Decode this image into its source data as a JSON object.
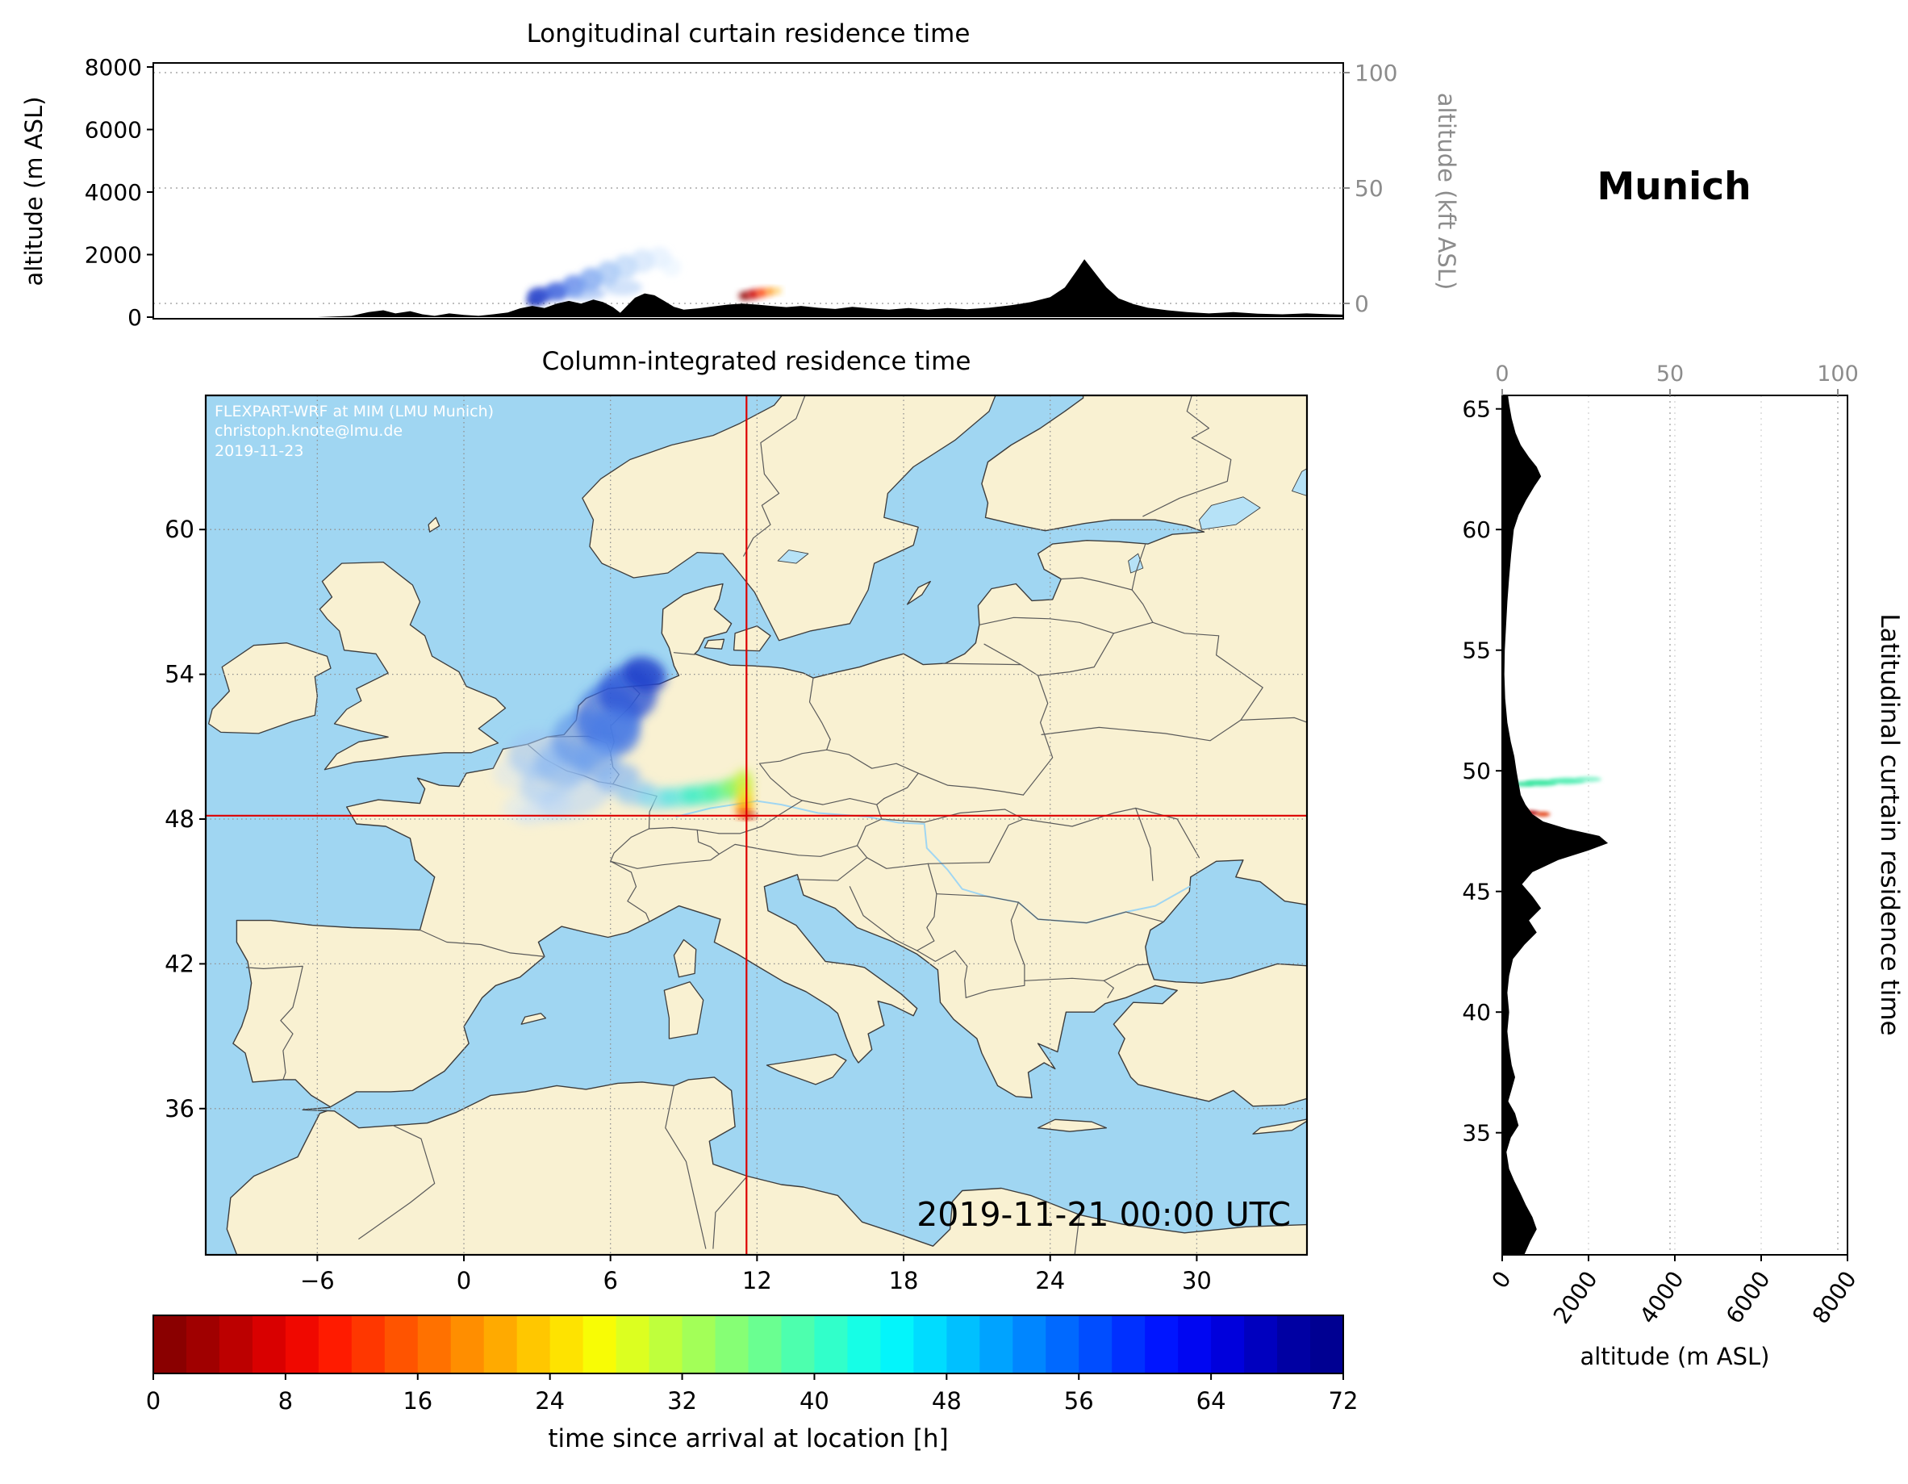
{
  "titles": {
    "longitudinal": "Longitudinal curtain residence time",
    "map": "Column-integrated residence time",
    "latitudinal": "Latitudinal curtain residence time",
    "location": "Munich"
  },
  "axis_labels": {
    "alt_m": "altitude (m ASL)",
    "alt_kft": "altitude (kft ASL)"
  },
  "map_panel": {
    "watermark_lines": [
      "FLEXPART-WRF at MIM (LMU Munich)",
      "christoph.knote@lmu.de",
      "2019-11-23"
    ],
    "timestamp": "2019-11-21 00:00 UTC"
  },
  "colors": {
    "sea": "#a0d6f2",
    "land": "#f9f1d2",
    "lake": "#b6e2f7",
    "coast": "#3c3c3c",
    "border": "#5a5a5a",
    "river": "#a0d6f2",
    "crosshair": "#dd0000",
    "axis_gray": "#8c8c8c",
    "terrain": "#000000"
  },
  "colorbar": {
    "label": "time since arrival at location [h]",
    "min": 0,
    "max": 72,
    "ticks": [
      0,
      8,
      16,
      24,
      32,
      40,
      48,
      56,
      64,
      72
    ],
    "colormap": "jet_r",
    "stops": [
      "#7f0000",
      "#9b0000",
      "#c10000",
      "#e70000",
      "#ff1600",
      "#ff3c00",
      "#ff6200",
      "#ff8900",
      "#ffaf00",
      "#ffd500",
      "#fdfb00",
      "#d7ff24",
      "#b1ff4a",
      "#8bff70",
      "#65ff96",
      "#3fffbc",
      "#19ffe2",
      "#00f4ff",
      "#00ceff",
      "#00a8ff",
      "#0081ff",
      "#005bff",
      "#0035ff",
      "#0010ff",
      "#0000ea",
      "#0000c4",
      "#00009e",
      "#00008b"
    ]
  },
  "chart_data": [
    {
      "id": "longitudinal_curtain",
      "type": "area",
      "title": "Longitudinal curtain residence time",
      "ylabel": "altitude (m ASL)",
      "y2label": "altitude (kft ASL)",
      "ylim": [
        0,
        8000
      ],
      "y2lim": [
        0,
        100
      ],
      "lon_range": [
        -12.7,
        36.0
      ],
      "yticks": [
        0,
        2000,
        4000,
        6000,
        8000
      ],
      "y2ticks": [
        0,
        50,
        100
      ],
      "terrain_lon_alt": [
        [
          -12.7,
          0
        ],
        [
          -6.0,
          0
        ],
        [
          -4.6,
          40
        ],
        [
          -3.9,
          160
        ],
        [
          -3.3,
          220
        ],
        [
          -2.8,
          120
        ],
        [
          -2.2,
          190
        ],
        [
          -1.7,
          90
        ],
        [
          -1.2,
          40
        ],
        [
          -0.6,
          120
        ],
        [
          0.0,
          70
        ],
        [
          0.6,
          40
        ],
        [
          1.2,
          90
        ],
        [
          1.8,
          150
        ],
        [
          2.3,
          280
        ],
        [
          2.8,
          360
        ],
        [
          3.3,
          290
        ],
        [
          3.8,
          430
        ],
        [
          4.3,
          520
        ],
        [
          4.8,
          430
        ],
        [
          5.3,
          560
        ],
        [
          5.7,
          480
        ],
        [
          6.1,
          320
        ],
        [
          6.4,
          140
        ],
        [
          6.7,
          380
        ],
        [
          7.0,
          620
        ],
        [
          7.4,
          760
        ],
        [
          7.8,
          700
        ],
        [
          8.2,
          520
        ],
        [
          8.6,
          330
        ],
        [
          9.0,
          240
        ],
        [
          9.6,
          280
        ],
        [
          10.2,
          340
        ],
        [
          10.8,
          400
        ],
        [
          11.4,
          430
        ],
        [
          12.0,
          400
        ],
        [
          12.6,
          360
        ],
        [
          13.2,
          320
        ],
        [
          13.8,
          360
        ],
        [
          14.5,
          300
        ],
        [
          15.2,
          260
        ],
        [
          15.9,
          330
        ],
        [
          16.6,
          280
        ],
        [
          17.4,
          240
        ],
        [
          18.2,
          290
        ],
        [
          19.0,
          240
        ],
        [
          19.8,
          290
        ],
        [
          20.6,
          250
        ],
        [
          21.5,
          300
        ],
        [
          22.4,
          380
        ],
        [
          23.2,
          480
        ],
        [
          24.0,
          640
        ],
        [
          24.6,
          950
        ],
        [
          25.1,
          1500
        ],
        [
          25.4,
          1850
        ],
        [
          25.8,
          1450
        ],
        [
          26.3,
          950
        ],
        [
          26.8,
          600
        ],
        [
          27.4,
          420
        ],
        [
          28.0,
          300
        ],
        [
          28.8,
          220
        ],
        [
          29.6,
          160
        ],
        [
          30.5,
          120
        ],
        [
          31.5,
          160
        ],
        [
          32.5,
          110
        ],
        [
          33.5,
          90
        ],
        [
          34.5,
          120
        ],
        [
          35.5,
          90
        ],
        [
          36.0,
          80
        ]
      ],
      "plume": {
        "format": [
          "lon",
          "alt_m",
          "rx_deg",
          "ry_m",
          "color",
          "opacity"
        ],
        "points": [
          [
            2.9,
            520,
            0.35,
            150,
            "#1e34b4",
            0.9
          ],
          [
            3.1,
            700,
            0.5,
            260,
            "#2a46cc",
            0.9
          ],
          [
            3.8,
            820,
            0.5,
            300,
            "#3c62dc",
            0.85
          ],
          [
            4.5,
            1000,
            0.5,
            350,
            "#5580e8",
            0.75
          ],
          [
            5.2,
            1200,
            0.5,
            380,
            "#6f9cee",
            0.7
          ],
          [
            5.9,
            1400,
            0.5,
            400,
            "#8ab4f2",
            0.6
          ],
          [
            6.6,
            1600,
            0.5,
            400,
            "#a4c8f6",
            0.55
          ],
          [
            7.3,
            1800,
            0.5,
            380,
            "#bcd8fa",
            0.5
          ],
          [
            8.0,
            1900,
            0.5,
            350,
            "#d0e4fc",
            0.45
          ],
          [
            8.5,
            1600,
            0.4,
            300,
            "#dceefe",
            0.4
          ],
          [
            5.0,
            750,
            0.8,
            220,
            "#7fa8f0",
            0.5
          ],
          [
            6.5,
            950,
            0.8,
            260,
            "#9cc0f4",
            0.45
          ],
          [
            11.5,
            680,
            0.24,
            130,
            "#8c0000",
            1
          ],
          [
            11.85,
            730,
            0.25,
            140,
            "#c80000",
            1
          ],
          [
            12.2,
            780,
            0.25,
            130,
            "#ff3c00",
            0.95
          ],
          [
            12.55,
            820,
            0.2,
            110,
            "#ff8c00",
            0.9
          ],
          [
            12.85,
            840,
            0.15,
            90,
            "#ffc030",
            0.85
          ]
        ]
      }
    },
    {
      "id": "column_integrated_map",
      "type": "map",
      "title": "Column-integrated residence time",
      "lon_range": [
        -10.6,
        34.5
      ],
      "lat_range": [
        29.9,
        65.6
      ],
      "xticks": [
        -6,
        0,
        6,
        12,
        18,
        24,
        30
      ],
      "yticks": [
        36,
        42,
        48,
        54,
        60
      ],
      "crosshair": {
        "lon": 11.57,
        "lat": 48.14
      },
      "plume": {
        "format": [
          "lon",
          "lat",
          "rx_deg",
          "ry_deg",
          "rot_deg",
          "color",
          "opacity"
        ],
        "points": [
          [
            2.6,
            48.7,
            1.1,
            0.6,
            -25,
            "#d4e6fa",
            0.45
          ],
          [
            2.1,
            49.9,
            0.9,
            0.7,
            0,
            "#cde2fa",
            0.4
          ],
          [
            3.3,
            48.4,
            1.2,
            0.5,
            -20,
            "#c8defa",
            0.5
          ],
          [
            4.6,
            48.9,
            1.6,
            0.8,
            -20,
            "#b4d4f8",
            0.55
          ],
          [
            3.6,
            49.7,
            1.4,
            0.9,
            -30,
            "#a6cbf6",
            0.55
          ],
          [
            3.0,
            50.7,
            1.2,
            1.0,
            0,
            "#9cc4f4",
            0.6
          ],
          [
            4.1,
            50.3,
            1.2,
            0.9,
            0,
            "#88b6f0",
            0.6
          ],
          [
            4.9,
            51.3,
            1.3,
            1.2,
            0,
            "#5f94ea",
            0.65
          ],
          [
            5.9,
            52.2,
            1.3,
            1.4,
            10,
            "#3f70e2",
            0.75
          ],
          [
            6.7,
            53.2,
            1.2,
            1.1,
            15,
            "#2c54d6",
            0.8
          ],
          [
            7.4,
            54.0,
            0.9,
            0.7,
            20,
            "#2040ca",
            0.85
          ],
          [
            6.2,
            51.6,
            1.0,
            1.0,
            0,
            "#4a7ce6",
            0.7
          ],
          [
            5.5,
            50.4,
            0.9,
            0.8,
            0,
            "#6ea2ee",
            0.65
          ],
          [
            6.3,
            49.7,
            0.9,
            0.6,
            -10,
            "#7fb2f2",
            0.65
          ],
          [
            7.0,
            49.1,
            0.8,
            0.5,
            -10,
            "#8cc6f2",
            0.7
          ],
          [
            7.9,
            48.85,
            0.8,
            0.45,
            0,
            "#7cd8f0",
            0.7
          ],
          [
            8.8,
            48.9,
            0.8,
            0.4,
            0,
            "#55e6dd",
            0.75
          ],
          [
            9.7,
            49.0,
            0.8,
            0.4,
            0,
            "#38eec2",
            0.8
          ],
          [
            10.5,
            49.15,
            0.7,
            0.35,
            0,
            "#52f29a",
            0.8
          ],
          [
            11.05,
            49.3,
            0.5,
            0.4,
            0,
            "#8ef468",
            0.85
          ],
          [
            11.45,
            49.55,
            0.35,
            0.5,
            0,
            "#c6f243",
            0.9
          ],
          [
            11.5,
            48.95,
            0.3,
            0.5,
            0,
            "#eee225",
            0.9
          ],
          [
            11.5,
            48.55,
            0.28,
            0.32,
            0,
            "#ffb400",
            0.95
          ],
          [
            11.42,
            48.3,
            0.25,
            0.18,
            0,
            "#ff5a00",
            0.95
          ],
          [
            11.57,
            48.17,
            0.22,
            0.13,
            0,
            "#dc1400",
            1
          ],
          [
            11.78,
            48.14,
            0.14,
            0.09,
            0,
            "#8f0000",
            1
          ]
        ]
      }
    },
    {
      "id": "latitudinal_curtain",
      "type": "area",
      "title": "Latitudinal curtain residence time",
      "xlabel": "altitude (m ASL)",
      "xlim": [
        0,
        8000
      ],
      "x2lim": [
        0,
        100
      ],
      "lat_range": [
        29.9,
        65.6
      ],
      "xticks": [
        0,
        2000,
        4000,
        6000,
        8000
      ],
      "x2ticks": [
        0,
        50,
        100
      ],
      "yticks": [
        35,
        40,
        45,
        50,
        55,
        60,
        65
      ],
      "terrain_lat_alt": [
        [
          29.9,
          500
        ],
        [
          30.5,
          650
        ],
        [
          31.0,
          800
        ],
        [
          31.5,
          700
        ],
        [
          32.0,
          550
        ],
        [
          32.5,
          420
        ],
        [
          33.0,
          280
        ],
        [
          33.5,
          160
        ],
        [
          34.2,
          100
        ],
        [
          34.8,
          200
        ],
        [
          35.3,
          380
        ],
        [
          35.8,
          300
        ],
        [
          36.3,
          140
        ],
        [
          36.8,
          220
        ],
        [
          37.3,
          300
        ],
        [
          37.8,
          220
        ],
        [
          38.5,
          160
        ],
        [
          39.2,
          120
        ],
        [
          40.0,
          160
        ],
        [
          40.8,
          120
        ],
        [
          41.5,
          160
        ],
        [
          42.2,
          250
        ],
        [
          42.8,
          520
        ],
        [
          43.3,
          800
        ],
        [
          43.8,
          620
        ],
        [
          44.3,
          900
        ],
        [
          44.8,
          700
        ],
        [
          45.3,
          460
        ],
        [
          45.8,
          700
        ],
        [
          46.3,
          1300
        ],
        [
          46.7,
          2000
        ],
        [
          47.0,
          2450
        ],
        [
          47.3,
          2250
        ],
        [
          47.6,
          1500
        ],
        [
          47.9,
          950
        ],
        [
          48.2,
          700
        ],
        [
          48.6,
          540
        ],
        [
          49.0,
          430
        ],
        [
          49.5,
          380
        ],
        [
          50.0,
          330
        ],
        [
          50.6,
          280
        ],
        [
          51.2,
          200
        ],
        [
          52.0,
          120
        ],
        [
          53.0,
          70
        ],
        [
          54.0,
          50
        ],
        [
          55.0,
          60
        ],
        [
          56.0,
          90
        ],
        [
          57.0,
          120
        ],
        [
          58.0,
          160
        ],
        [
          59.0,
          210
        ],
        [
          60.0,
          270
        ],
        [
          60.6,
          380
        ],
        [
          61.2,
          550
        ],
        [
          61.8,
          750
        ],
        [
          62.2,
          900
        ],
        [
          62.6,
          800
        ],
        [
          63.0,
          620
        ],
        [
          63.5,
          430
        ],
        [
          64.0,
          310
        ],
        [
          64.6,
          220
        ],
        [
          65.2,
          160
        ],
        [
          65.6,
          130
        ]
      ],
      "plume": {
        "format": [
          "alt_m",
          "lat",
          "rx_m",
          "ry_deg",
          "color",
          "opacity"
        ],
        "points": [
          [
            500,
            49.45,
            250,
            0.1,
            "#2adf96",
            0.9
          ],
          [
            900,
            49.5,
            380,
            0.13,
            "#34e69e",
            0.95
          ],
          [
            1500,
            49.58,
            420,
            0.13,
            "#46ecae",
            0.9
          ],
          [
            2000,
            49.65,
            300,
            0.11,
            "#6ff0c2",
            0.8
          ],
          [
            600,
            48.25,
            260,
            0.07,
            "#b00000",
            1
          ],
          [
            950,
            48.2,
            160,
            0.05,
            "#e03000",
            0.9
          ]
        ]
      }
    }
  ]
}
